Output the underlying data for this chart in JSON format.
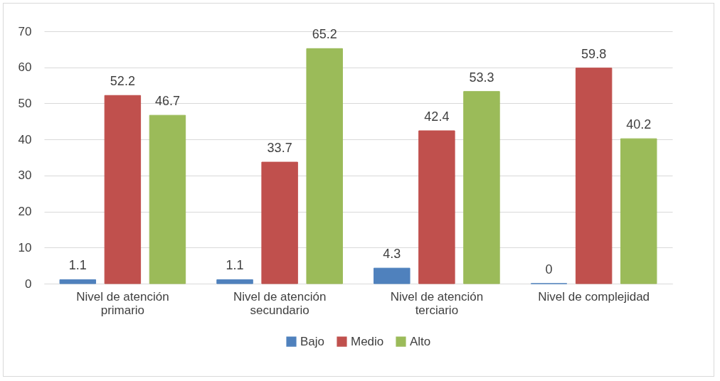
{
  "chart_data": {
    "type": "bar",
    "categories": [
      "Nivel de atención primario",
      "Nivel de atención secundario",
      "Nivel de atención terciario",
      "Nivel de complejidad"
    ],
    "series": [
      {
        "name": "Bajo",
        "color": "#4f81bd",
        "values": [
          1.1,
          1.1,
          4.3,
          0
        ]
      },
      {
        "name": "Medio",
        "color": "#c0504d",
        "values": [
          52.2,
          33.7,
          42.4,
          59.8
        ]
      },
      {
        "name": "Alto",
        "color": "#9bbb59",
        "values": [
          46.7,
          65.2,
          53.3,
          40.2
        ]
      }
    ],
    "ylim": [
      0,
      70
    ],
    "yticks": [
      0,
      10,
      20,
      30,
      40,
      50,
      60,
      70
    ],
    "grid": "y",
    "legend": "bottom",
    "data_labels": true
  }
}
